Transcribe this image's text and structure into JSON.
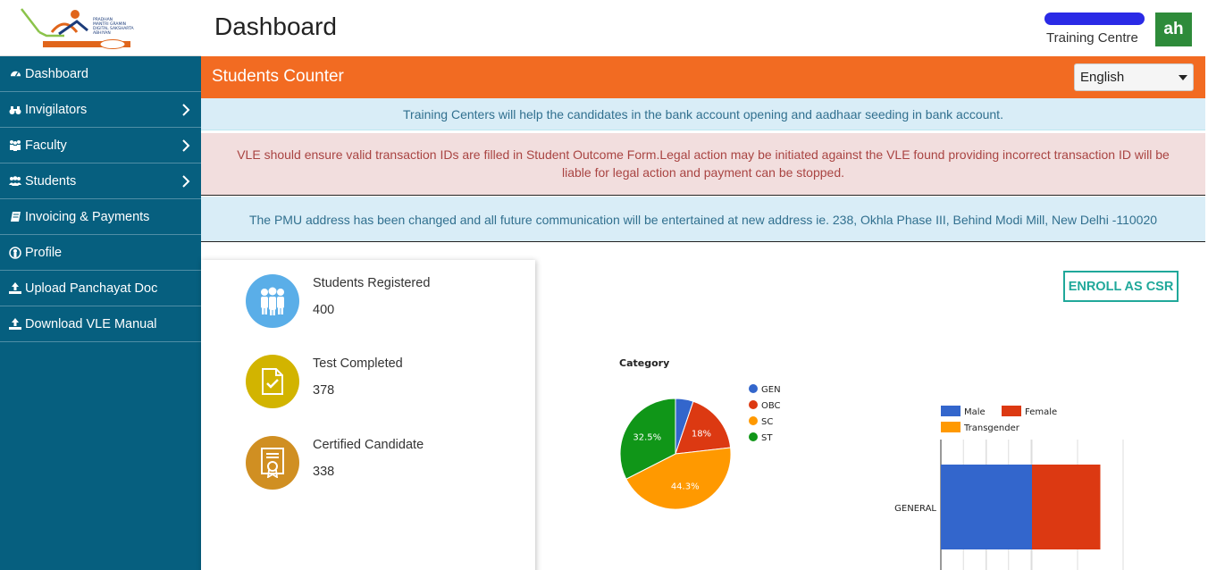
{
  "header": {
    "page_title": "Dashboard",
    "centre_label": "Training Centre",
    "avatar_initials": "ah"
  },
  "sidebar": {
    "items": [
      {
        "label": "Dashboard",
        "icon": "dashboard-icon"
      },
      {
        "label": "Invigilators",
        "icon": "binoculars-icon",
        "has_submenu": true
      },
      {
        "label": "Faculty",
        "icon": "sitemap-icon",
        "has_submenu": true
      },
      {
        "label": "Students",
        "icon": "users-icon",
        "has_submenu": true
      },
      {
        "label": "Invoicing & Payments",
        "icon": "book-icon"
      },
      {
        "label": "Profile",
        "icon": "user-circle-icon"
      },
      {
        "label": "Upload Panchayat Doc",
        "icon": "upload-icon"
      },
      {
        "label": "Download VLE Manual",
        "icon": "upload-icon"
      }
    ]
  },
  "banner": {
    "title": "Students Counter",
    "language": "English"
  },
  "alerts": {
    "info1": "Training Centers will help the candidates in the bank account opening and aadhaar seeding in bank account.",
    "danger_line1": "VLE should ensure valid transaction IDs are filled in Student Outcome Form.Legal action may be initiated against the VLE found providing incorrect transaction ID will be",
    "danger_line2": "liable for legal action and payment can be stopped.",
    "info2": "The PMU address has been changed and all future communication will be entertained at new address ie. 238, Okhla Phase III, Behind Modi Mill, New Delhi -110020"
  },
  "stats": [
    {
      "label": "Students Registered",
      "value": "400",
      "color": "#5aaee8",
      "icon": "students-icon"
    },
    {
      "label": "Test Completed",
      "value": "378",
      "color": "#d2b400",
      "icon": "document-check-icon"
    },
    {
      "label": "Certified Candidate",
      "value": "338",
      "color": "#d08f22",
      "icon": "certificate-icon"
    }
  ],
  "enroll_button": "ENROLL AS CSR",
  "colors": {
    "sidebar": "#065f7f",
    "banner": "#f26b22",
    "avatar": "#2e8b3a",
    "enroll": "#20a89a"
  },
  "chart_data": [
    {
      "type": "pie",
      "title": "Category",
      "categories": [
        "GEN",
        "OBC",
        "SC",
        "ST"
      ],
      "values": [
        5.2,
        18,
        44.3,
        32.5
      ],
      "colors": [
        "#3366cc",
        "#dc3912",
        "#ff9900",
        "#109618"
      ],
      "data_labels": [
        "",
        "18%",
        "44.3%",
        "32.5%"
      ],
      "legend": "right"
    },
    {
      "type": "bar",
      "orientation": "horizontal",
      "stacked": true,
      "categories": [
        "GENERAL"
      ],
      "series": [
        {
          "name": "Male",
          "values": [
            100
          ],
          "color": "#3366cc"
        },
        {
          "name": "Female",
          "values": [
            75
          ],
          "color": "#dc3912"
        },
        {
          "name": "Transgender",
          "values": [
            0
          ],
          "color": "#ff9900"
        }
      ],
      "legend": "top",
      "grid": true
    }
  ]
}
